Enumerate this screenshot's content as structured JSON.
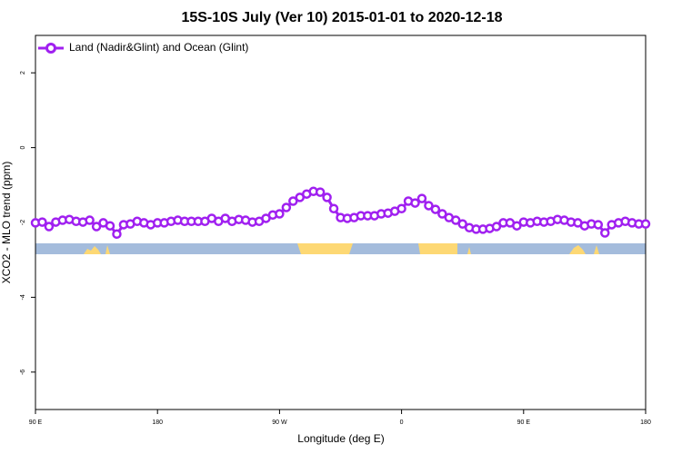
{
  "chart_data": {
    "type": "line",
    "title": "15S-10S July (Ver 10)   2015-01-01 to 2020-12-18",
    "x_label": "Longitude (deg E)",
    "y_label": "XCO2 - MLO trend (ppm)",
    "x": [
      90,
      95,
      100,
      105,
      110,
      115,
      120,
      125,
      130,
      135,
      140,
      145,
      150,
      155,
      160,
      165,
      170,
      175,
      180,
      185,
      190,
      195,
      200,
      205,
      210,
      215,
      220,
      225,
      230,
      235,
      240,
      245,
      250,
      255,
      260,
      265,
      270,
      275,
      280,
      285,
      290,
      295,
      300,
      305,
      310,
      315,
      320,
      325,
      330,
      335,
      340,
      345,
      350,
      355,
      360,
      365,
      370,
      375,
      380,
      385,
      390,
      395,
      400,
      405,
      410,
      415,
      420,
      425,
      430,
      435,
      440,
      445,
      450,
      455,
      460,
      465,
      470,
      475,
      480,
      485,
      490,
      495,
      500,
      505,
      510,
      515,
      520,
      525,
      530,
      535,
      540
    ],
    "series": [
      {
        "name": "Land (Nadir&Glint) and Ocean (Glint)",
        "color": "#a020f0",
        "values": [
          -2.01,
          -1.99,
          -2.11,
          -1.99,
          -1.94,
          -1.92,
          -1.97,
          -1.99,
          -1.94,
          -2.11,
          -2.01,
          -2.09,
          -2.31,
          -2.06,
          -2.04,
          -1.97,
          -2.01,
          -2.06,
          -2.01,
          -2.01,
          -1.97,
          -1.94,
          -1.97,
          -1.97,
          -1.97,
          -1.97,
          -1.89,
          -1.97,
          -1.89,
          -1.97,
          -1.92,
          -1.94,
          -1.99,
          -1.97,
          -1.89,
          -1.8,
          -1.77,
          -1.6,
          -1.43,
          -1.33,
          -1.24,
          -1.17,
          -1.19,
          -1.33,
          -1.63,
          -1.87,
          -1.89,
          -1.87,
          -1.82,
          -1.82,
          -1.82,
          -1.77,
          -1.75,
          -1.7,
          -1.63,
          -1.43,
          -1.48,
          -1.36,
          -1.55,
          -1.65,
          -1.77,
          -1.87,
          -1.94,
          -2.04,
          -2.14,
          -2.18,
          -2.18,
          -2.16,
          -2.11,
          -2.01,
          -2.01,
          -2.09,
          -1.99,
          -2.01,
          -1.97,
          -1.99,
          -1.97,
          -1.92,
          -1.94,
          -1.99,
          -2.01,
          -2.09,
          -2.04,
          -2.06,
          -2.28,
          -2.06,
          -2.01,
          -1.97,
          -2.01,
          -2.04,
          -2.04
        ]
      }
    ],
    "xlim": [
      90,
      540
    ],
    "xticks": [
      {
        "value": 90,
        "label": "90 E"
      },
      180,
      {
        "value": 270,
        "label": "90 W"
      },
      {
        "value": 360,
        "label": "0"
      },
      {
        "value": 450,
        "label": "90 E"
      },
      {
        "value": 540,
        "label": "180"
      }
    ],
    "ylim": [
      -7,
      3
    ],
    "yticks": [
      -6,
      -4,
      -2,
      0,
      2
    ],
    "legend": "top-left"
  }
}
